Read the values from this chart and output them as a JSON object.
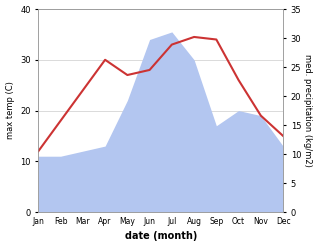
{
  "months": [
    "Jan",
    "Feb",
    "Mar",
    "Apr",
    "May",
    "Jun",
    "Jul",
    "Aug",
    "Sep",
    "Oct",
    "Nov",
    "Dec"
  ],
  "temperature": [
    12.0,
    18.0,
    24.0,
    30.0,
    27.0,
    28.0,
    33.0,
    34.5,
    34.0,
    26.0,
    19.0,
    15.0
  ],
  "precipitation": [
    11.0,
    11.0,
    12.0,
    13.0,
    22.0,
    34.0,
    35.5,
    30.0,
    17.0,
    20.0,
    19.0,
    13.0
  ],
  "temp_color": "#cc3333",
  "precip_color": "#b3c6f0",
  "temp_ylim": [
    0,
    40
  ],
  "precip_ylim": [
    0,
    35
  ],
  "temp_yticks": [
    0,
    10,
    20,
    30,
    40
  ],
  "precip_yticks": [
    0,
    5,
    10,
    15,
    20,
    25,
    30,
    35
  ],
  "xlabel": "date (month)",
  "ylabel_left": "max temp (C)",
  "ylabel_right": "med. precipitation (kg/m2)",
  "bg_color": "#ffffff"
}
